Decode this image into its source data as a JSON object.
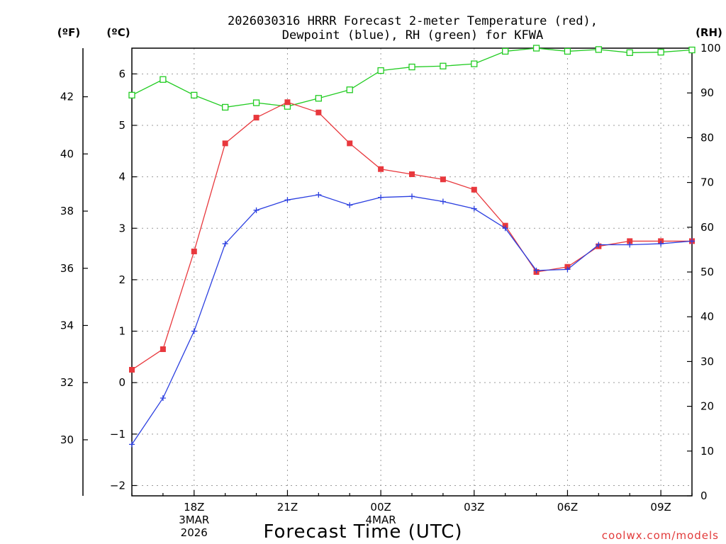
{
  "chart_data": {
    "type": "line",
    "title_lines": [
      "2026030316 HRRR Forecast 2-meter Temperature (red),",
      "Dewpoint (blue), RH (green) for KFWA"
    ],
    "xlabel": "Forecast Time (UTC)",
    "credit": "coolwx.com/models",
    "units": {
      "fahrenheit": "(ºF)",
      "celsius": "(ºC)",
      "rh": "(RH)"
    },
    "x_range": [
      0,
      18
    ],
    "x_ticks": [
      {
        "x": 2,
        "lines": [
          "18Z",
          "3MAR",
          "2026"
        ]
      },
      {
        "x": 5,
        "lines": [
          "21Z"
        ]
      },
      {
        "x": 8,
        "lines": [
          "00Z",
          "4MAR"
        ]
      },
      {
        "x": 11,
        "lines": [
          "03Z"
        ]
      },
      {
        "x": 14,
        "lines": [
          "06Z"
        ]
      },
      {
        "x": 17,
        "lines": [
          "09Z"
        ]
      }
    ],
    "celsius_axis": {
      "range": [
        -2.2,
        6.5
      ],
      "ticks": [
        -2,
        -1,
        0,
        1,
        2,
        3,
        4,
        5,
        6
      ]
    },
    "fahrenheit_axis": {
      "range": [
        28.04,
        43.7
      ],
      "ticks": [
        30,
        32,
        34,
        36,
        38,
        40,
        42
      ]
    },
    "rh_axis": {
      "range": [
        0,
        100
      ],
      "ticks": [
        0,
        10,
        20,
        30,
        40,
        50,
        60,
        70,
        80,
        90,
        100
      ]
    },
    "series": [
      {
        "name": "Temperature",
        "unit": "celsius",
        "color": "#e8383d",
        "marker": "filled-square",
        "x": [
          0,
          1,
          2,
          3,
          4,
          5,
          6,
          7,
          8,
          9,
          10,
          11,
          12,
          13,
          14,
          15,
          16,
          17,
          18
        ],
        "values": [
          0.25,
          0.65,
          2.55,
          4.65,
          5.15,
          5.45,
          5.25,
          4.65,
          4.15,
          4.05,
          3.95,
          3.75,
          3.05,
          2.15,
          2.25,
          2.65,
          2.75,
          2.75,
          2.75
        ]
      },
      {
        "name": "Dewpoint",
        "unit": "celsius",
        "color": "#2b3fe0",
        "marker": "plus",
        "x": [
          0,
          1,
          2,
          3,
          4,
          5,
          6,
          7,
          8,
          9,
          10,
          11,
          12,
          13,
          14,
          15,
          16,
          17,
          18
        ],
        "values": [
          -1.2,
          -0.3,
          1.0,
          2.7,
          3.35,
          3.55,
          3.65,
          3.45,
          3.6,
          3.62,
          3.52,
          3.38,
          3.0,
          2.18,
          2.2,
          2.68,
          2.68,
          2.7,
          2.75
        ]
      },
      {
        "name": "RH",
        "unit": "rh",
        "color": "#22cc22",
        "marker": "hollow-square",
        "x": [
          0,
          1,
          2,
          3,
          4,
          5,
          6,
          7,
          8,
          9,
          10,
          11,
          12,
          13,
          14,
          15,
          16,
          17,
          18
        ],
        "values": [
          89.5,
          93.0,
          89.5,
          86.8,
          87.8,
          87.0,
          88.8,
          90.7,
          95.0,
          95.8,
          96.0,
          96.5,
          99.3,
          100.0,
          99.3,
          99.7,
          99.0,
          99.1,
          99.6
        ]
      }
    ]
  }
}
